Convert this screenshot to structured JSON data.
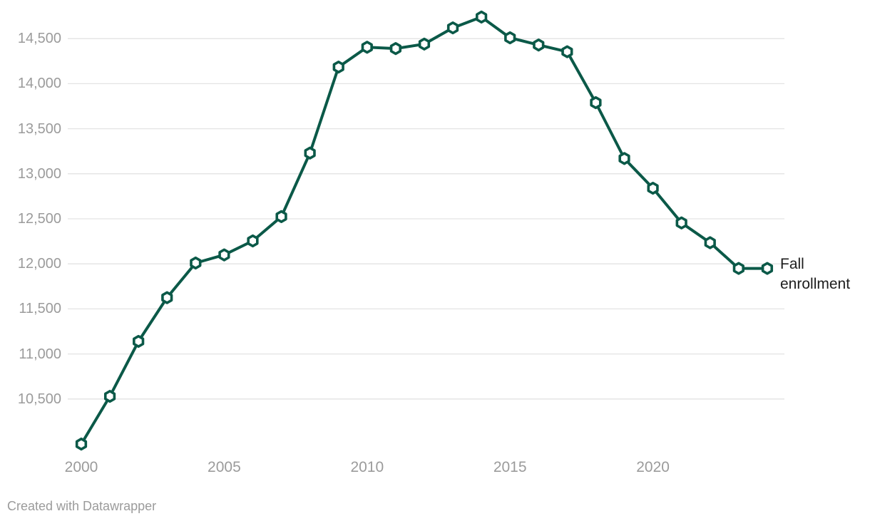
{
  "chart": {
    "footer": "Created with Datawrapper",
    "colors": {
      "line": "#0b5948",
      "marker_fill": "#ffffff",
      "grid": "#e3e3e3",
      "axis_text": "#9b9b9b",
      "annotation_text": "#1d1d1d",
      "footer_text": "#9b9b9b",
      "background": "#ffffff"
    }
  },
  "chart_data": {
    "type": "line",
    "title": "",
    "xlabel": "",
    "ylabel": "",
    "grid": "horizontal",
    "legend_position": "direct-label-right-of-last-point",
    "marker": "open-hexagon",
    "xlim": [
      2000,
      2024
    ],
    "ylim": [
      9850,
      14850
    ],
    "x_ticks": [
      2000,
      2005,
      2010,
      2015,
      2020
    ],
    "y_ticks": [
      10500,
      11000,
      11500,
      12000,
      12500,
      13000,
      13500,
      14000,
      14500
    ],
    "series": [
      {
        "name": "Fall enrollment",
        "x": [
          2000,
          2001,
          2002,
          2003,
          2004,
          2005,
          2006,
          2007,
          2008,
          2009,
          2010,
          2011,
          2012,
          2013,
          2014,
          2015,
          2016,
          2017,
          2018,
          2019,
          2020,
          2021,
          2022,
          2023,
          2024
        ],
        "values": [
          10000,
          10530,
          11140,
          11625,
          12010,
          12100,
          12255,
          12525,
          13230,
          14185,
          14405,
          14390,
          14440,
          14620,
          14740,
          14510,
          14430,
          14355,
          13790,
          13170,
          12840,
          12455,
          12235,
          11950,
          11950
        ]
      }
    ]
  }
}
